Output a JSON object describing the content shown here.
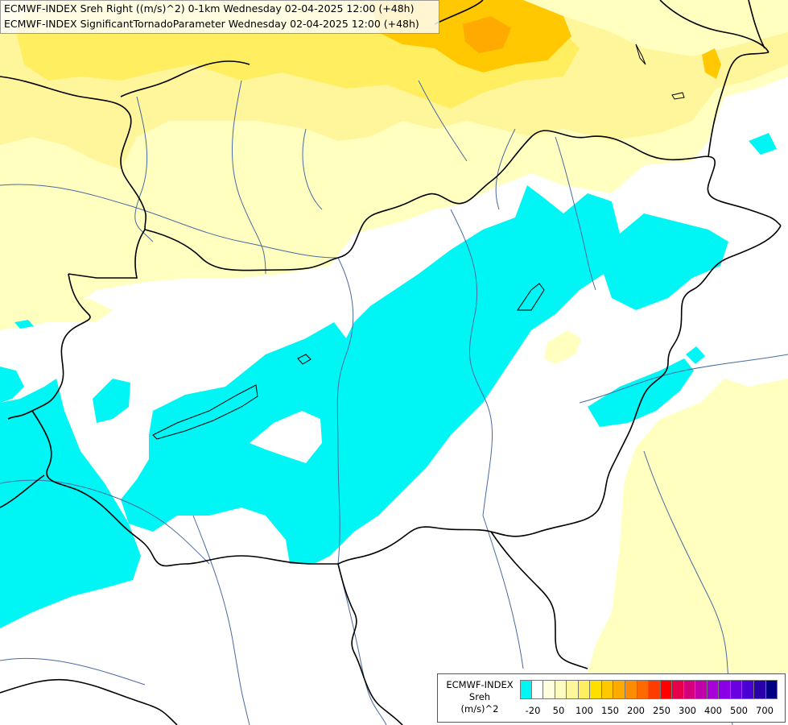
{
  "header": {
    "line1": "ECMWF-INDEX Sreh Right ((m/s)^2) 0-1km Wednesday 02-04-2025 12:00 (+48h)",
    "line2": "ECMWF-INDEX SignificantTornadoParameter Wednesday 02-04-2025 12:00 (+48h)"
  },
  "legend": {
    "title_lines": [
      "ECMWF-INDEX",
      "Sreh",
      "(m/s)^2"
    ],
    "colors": [
      "#00f5f5",
      "#ffffff",
      "#ffffe0",
      "#fffac0",
      "#fff59a",
      "#ffee60",
      "#ffdf00",
      "#ffc800",
      "#ffaa00",
      "#ff8c00",
      "#ff6a00",
      "#ff3c00",
      "#ff0000",
      "#e6004a",
      "#d2007a",
      "#c000a8",
      "#a800d8",
      "#8a00e6",
      "#6a00e0",
      "#4a00d2",
      "#2a00a8",
      "#000080"
    ],
    "tick_labels": [
      "-20",
      "50",
      "100",
      "150",
      "200",
      "250",
      "300",
      "400",
      "500",
      "700"
    ]
  },
  "map": {
    "fill_colors": {
      "low_helicity": "#00f5f5",
      "neutral": "#ffffff",
      "pale_yellow": "#ffffc0",
      "yellow": "#fff59a",
      "strong_yellow": "#ffee60",
      "orange": "#ffc800"
    },
    "border_color": "#000000",
    "river_color": "#4a6aa0"
  }
}
